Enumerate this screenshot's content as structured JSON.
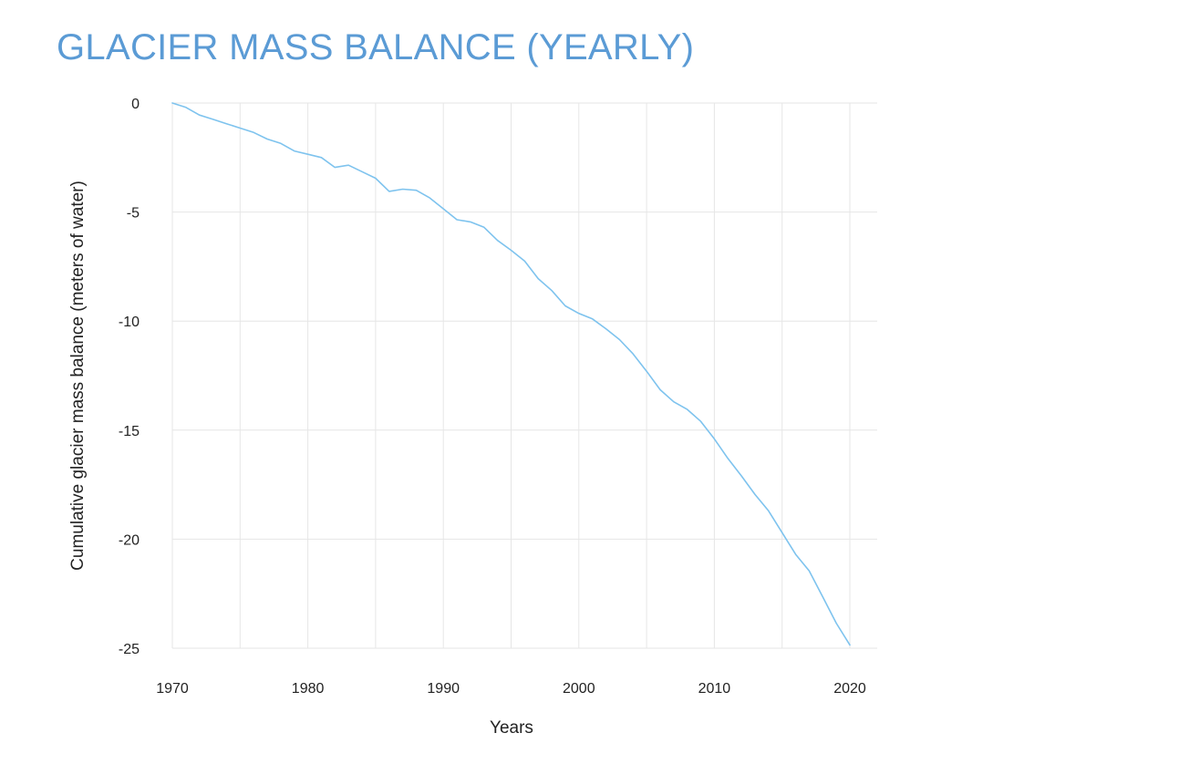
{
  "chart_data": {
    "type": "line",
    "title": "GLACIER MASS BALANCE (YEARLY)",
    "xlabel": "Years",
    "ylabel": "Cumulative glacier mass balance (meters of water)",
    "xlim": [
      1970,
      2020
    ],
    "ylim": [
      -25,
      0
    ],
    "x_ticks": [
      1970,
      1980,
      1990,
      2000,
      2010,
      2020
    ],
    "y_ticks": [
      0,
      -5,
      -10,
      -15,
      -20,
      -25
    ],
    "x_grid_step": 5,
    "grid": true,
    "legend": "none",
    "title_color": "#5b9bd5",
    "line_color": "#7ec3ee",
    "series": [
      {
        "name": "Cumulative glacier mass balance",
        "x": [
          1970,
          1971,
          1972,
          1973,
          1974,
          1975,
          1976,
          1977,
          1978,
          1979,
          1980,
          1981,
          1982,
          1983,
          1984,
          1985,
          1986,
          1987,
          1988,
          1989,
          1990,
          1991,
          1992,
          1993,
          1994,
          1995,
          1996,
          1997,
          1998,
          1999,
          2000,
          2001,
          2002,
          2003,
          2004,
          2005,
          2006,
          2007,
          2008,
          2009,
          2010,
          2011,
          2012,
          2013,
          2014,
          2015,
          2016,
          2017,
          2018,
          2019,
          2020
        ],
        "values": [
          0,
          -0.2,
          -0.55,
          -0.75,
          -0.95,
          -1.15,
          -1.35,
          -1.65,
          -1.85,
          -2.2,
          -2.35,
          -2.5,
          -2.95,
          -2.85,
          -3.15,
          -3.45,
          -4.05,
          -3.95,
          -4.0,
          -4.35,
          -4.85,
          -5.35,
          -5.45,
          -5.7,
          -6.3,
          -6.75,
          -7.25,
          -8.05,
          -8.6,
          -9.3,
          -9.65,
          -9.9,
          -10.35,
          -10.85,
          -11.5,
          -12.3,
          -13.15,
          -13.7,
          -14.05,
          -14.6,
          -15.4,
          -16.3,
          -17.1,
          -17.95,
          -18.7,
          -19.7,
          -20.7,
          -21.45,
          -22.65,
          -23.85,
          -24.85
        ]
      }
    ]
  }
}
